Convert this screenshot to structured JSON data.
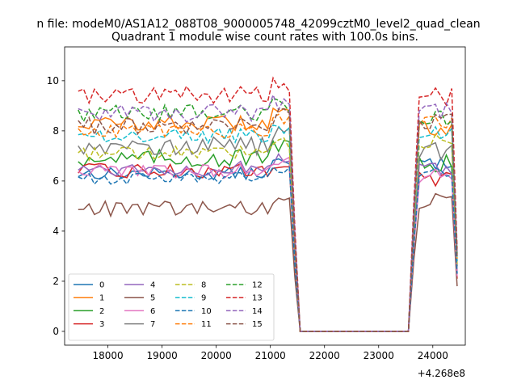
{
  "suptitle": "n file: modeM0/AS1A12_088T08_9000005748_42099cztM0_level2_quad_clean",
  "chart_data": {
    "type": "line",
    "title": "Quadrant 1 module wise count rates with 100.0s bins.",
    "xlabel": "",
    "ylabel": "",
    "x_offset_label": "+4.268e8",
    "xlim": [
      17200,
      24600
    ],
    "ylim": [
      -0.55,
      11.35
    ],
    "xticks": [
      18000,
      19000,
      20000,
      21000,
      22000,
      23000,
      24000
    ],
    "xtick_labels": [
      "18000",
      "19000",
      "20000",
      "21000",
      "22000",
      "23000",
      "24000"
    ],
    "yticks": [
      0,
      2,
      4,
      6,
      8,
      10
    ],
    "ytick_labels": [
      "0",
      "2",
      "4",
      "6",
      "8",
      "10"
    ],
    "grid": false,
    "legend_position": "lower-left",
    "x_segments": [
      {
        "start": 17450,
        "end": 21350,
        "step": 100
      },
      {
        "start": 21450,
        "end": 21550,
        "step": 100
      },
      {
        "start": 21650,
        "end": 23550,
        "step": 100
      },
      {
        "start": 23650,
        "end": 23750,
        "step": 100
      },
      {
        "start": 23850,
        "end": 24350,
        "step": 100
      },
      {
        "start": 24450,
        "end": 24450,
        "step": 100
      }
    ],
    "series": [
      {
        "name": "0",
        "color": "#1f77b4",
        "dash": "solid",
        "level1": 6.3,
        "level2": 6.7,
        "end": 2.3,
        "jitter": 0.25
      },
      {
        "name": "1",
        "color": "#ff7f0e",
        "dash": "solid",
        "level1": 8.3,
        "level2": 8.1,
        "end": 2.8,
        "jitter": 0.3
      },
      {
        "name": "2",
        "color": "#2ca02c",
        "dash": "solid",
        "level1": 6.9,
        "level2": 6.7,
        "end": 2.6,
        "jitter": 0.35
      },
      {
        "name": "3",
        "color": "#d62728",
        "dash": "solid",
        "level1": 6.4,
        "level2": 6.1,
        "end": 2.1,
        "jitter": 0.3
      },
      {
        "name": "4",
        "color": "#9467bd",
        "dash": "solid",
        "level1": 6.5,
        "level2": 6.4,
        "end": 2.4,
        "jitter": 0.3
      },
      {
        "name": "5",
        "color": "#8c564b",
        "dash": "solid",
        "level1": 4.9,
        "level2": 5.2,
        "end": 1.8,
        "jitter": 0.3
      },
      {
        "name": "6",
        "color": "#e377c2",
        "dash": "solid",
        "level1": 6.4,
        "level2": 6.2,
        "end": 2.2,
        "jitter": 0.3
      },
      {
        "name": "7",
        "color": "#7f7f7f",
        "dash": "solid",
        "level1": 7.4,
        "level2": 7.2,
        "end": 2.6,
        "jitter": 0.35
      },
      {
        "name": "8",
        "color": "#bcbd22",
        "dash": "dashed",
        "level1": 7.1,
        "level2": 7.6,
        "end": 2.7,
        "jitter": 0.3
      },
      {
        "name": "9",
        "color": "#17becf",
        "dash": "dashed",
        "level1": 7.8,
        "level2": 7.9,
        "end": 2.8,
        "jitter": 0.3
      },
      {
        "name": "10",
        "color": "#1f77b4",
        "dash": "dashed",
        "level1": 6.1,
        "level2": 6.3,
        "end": 2.3,
        "jitter": 0.25
      },
      {
        "name": "11",
        "color": "#ff7f0e",
        "dash": "dashed",
        "level1": 8.0,
        "level2": 8.3,
        "end": 2.9,
        "jitter": 0.3
      },
      {
        "name": "12",
        "color": "#2ca02c",
        "dash": "dashed",
        "level1": 8.7,
        "level2": 8.5,
        "end": 3.1,
        "jitter": 0.35
      },
      {
        "name": "13",
        "color": "#d62728",
        "dash": "dashed",
        "level1": 9.4,
        "level2": 9.4,
        "end": 3.3,
        "jitter": 0.4
      },
      {
        "name": "14",
        "color": "#9467bd",
        "dash": "dashed",
        "level1": 8.7,
        "level2": 8.8,
        "end": 3.1,
        "jitter": 0.35
      },
      {
        "name": "15",
        "color": "#8c564b",
        "dash": "dashed",
        "level1": 8.2,
        "level2": 8.4,
        "end": 3.0,
        "jitter": 0.35
      }
    ]
  }
}
